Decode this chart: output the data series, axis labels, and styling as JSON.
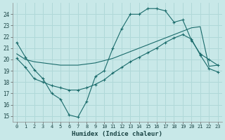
{
  "xlabel": "Humidex (Indice chaleur)",
  "xlim": [
    -0.5,
    23.5
  ],
  "ylim": [
    14.5,
    25.0
  ],
  "xticks": [
    0,
    1,
    2,
    3,
    4,
    5,
    6,
    7,
    8,
    9,
    10,
    11,
    12,
    13,
    14,
    15,
    16,
    17,
    18,
    19,
    20,
    21,
    22,
    23
  ],
  "yticks": [
    15,
    16,
    17,
    18,
    19,
    20,
    21,
    22,
    23,
    24
  ],
  "bg_color": "#c8e8e8",
  "line_color": "#1a6b6b",
  "grid_color": "#b0d8d8",
  "line1_x": [
    0,
    1,
    2,
    3,
    4,
    5,
    6,
    7,
    8,
    9,
    10,
    11,
    12,
    13,
    14,
    15,
    16,
    17,
    18,
    19,
    20,
    21,
    22,
    23
  ],
  "line1_y": [
    21.5,
    20.2,
    19.1,
    18.3,
    17.0,
    16.5,
    15.1,
    14.9,
    16.3,
    18.5,
    19.0,
    21.0,
    22.7,
    24.0,
    24.0,
    24.5,
    24.5,
    24.3,
    23.3,
    23.5,
    21.7,
    20.5,
    20.0,
    19.5
  ],
  "line2_x": [
    0,
    1,
    2,
    3,
    4,
    5,
    6,
    7,
    8,
    9,
    10,
    11,
    12,
    13,
    14,
    15,
    16,
    17,
    18,
    19,
    20,
    21,
    22,
    23
  ],
  "line2_y": [
    20.5,
    20.0,
    19.8,
    19.7,
    19.6,
    19.5,
    19.5,
    19.5,
    19.6,
    19.7,
    19.9,
    20.1,
    20.4,
    20.7,
    21.0,
    21.3,
    21.6,
    21.9,
    22.2,
    22.5,
    22.8,
    22.9,
    19.4,
    19.5
  ],
  "line3_x": [
    0,
    1,
    2,
    3,
    4,
    5,
    6,
    7,
    8,
    9,
    10,
    11,
    12,
    13,
    14,
    15,
    16,
    17,
    18,
    19,
    20,
    21,
    22,
    23
  ],
  "line3_y": [
    20.1,
    19.3,
    18.3,
    18.0,
    17.7,
    17.5,
    17.3,
    17.3,
    17.5,
    17.8,
    18.2,
    18.8,
    19.3,
    19.8,
    20.2,
    20.6,
    21.0,
    21.5,
    21.9,
    22.2,
    21.8,
    20.4,
    19.2,
    18.9
  ]
}
